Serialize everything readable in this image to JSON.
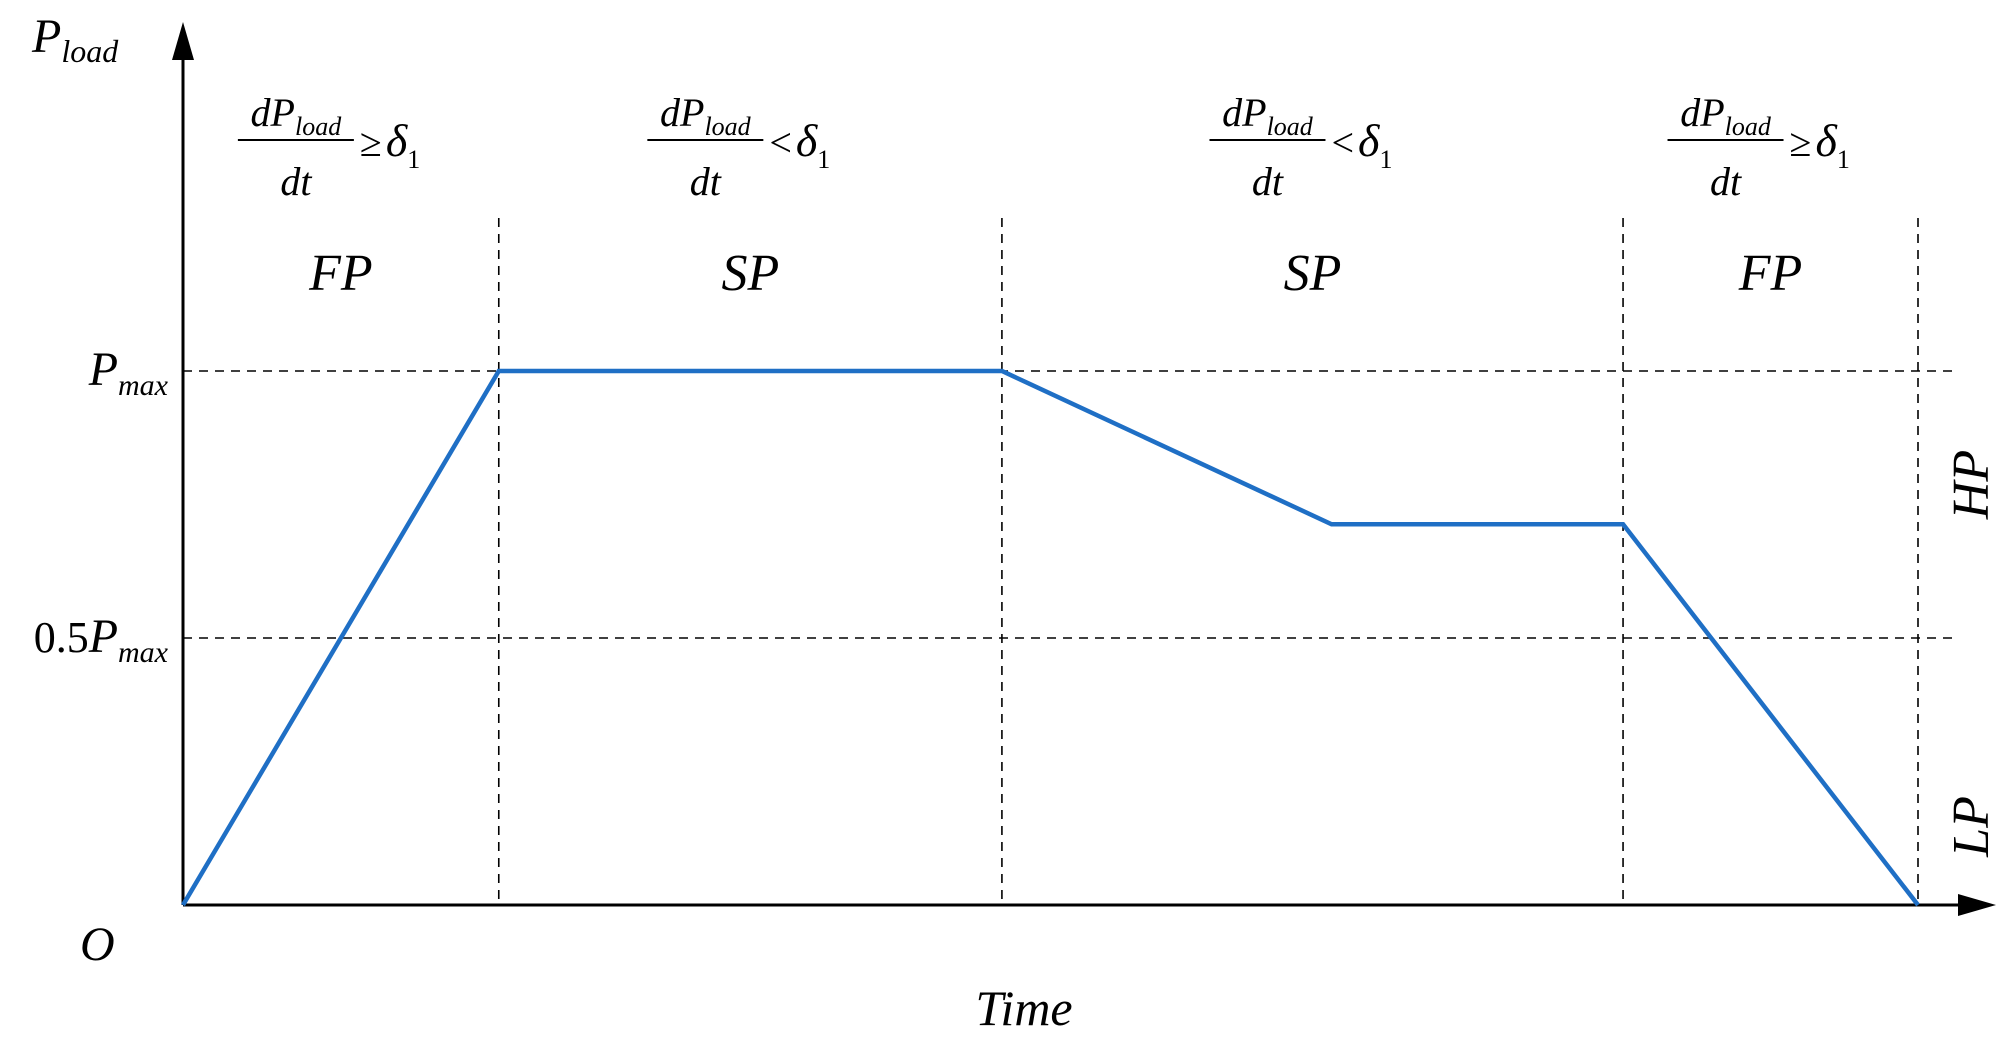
{
  "chart_data": {
    "type": "line",
    "title": "",
    "x_axis": {
      "label": "Time",
      "origin_label": "O",
      "range": [
        0,
        100
      ]
    },
    "y_axis": {
      "label_base": "P",
      "label_sub": "load",
      "range": [
        0,
        1
      ],
      "ticks": [
        {
          "value": 1.0,
          "coef": "",
          "base": "P",
          "sub": "max"
        },
        {
          "value": 0.5,
          "coef": "0.5",
          "base": "P",
          "sub": "max"
        }
      ]
    },
    "series": [
      {
        "color": "#1F6FC5",
        "points": [
          {
            "x": 0,
            "y": 0
          },
          {
            "x": 18.2,
            "y": 1.0
          },
          {
            "x": 47.2,
            "y": 1.0
          },
          {
            "x": 66.2,
            "y": 0.713
          },
          {
            "x": 83.0,
            "y": 0.713
          },
          {
            "x": 100,
            "y": 0
          }
        ]
      }
    ],
    "dividers_x": [
      18.2,
      47.2,
      83.0,
      100
    ],
    "guides_y": [
      1.0,
      0.5
    ],
    "phases": [
      {
        "label": "FP",
        "from": 0,
        "to": 18.2,
        "relation": "≥"
      },
      {
        "label": "SP",
        "from": 18.2,
        "to": 47.2,
        "relation": "<"
      },
      {
        "label": "SP",
        "from": 47.2,
        "to": 83.0,
        "relation": "<"
      },
      {
        "label": "FP",
        "from": 83.0,
        "to": 100,
        "relation": "≥"
      }
    ],
    "condition": {
      "numerator_base": "dP",
      "numerator_sub": "load",
      "denominator": "dt",
      "threshold_base": "δ",
      "threshold_sub": "1"
    },
    "regions": [
      {
        "label": "HP",
        "from": 0.5,
        "to": 1.0
      },
      {
        "label": "LP",
        "from": 0,
        "to": 0.5
      }
    ],
    "grid": false,
    "legend": "none"
  }
}
